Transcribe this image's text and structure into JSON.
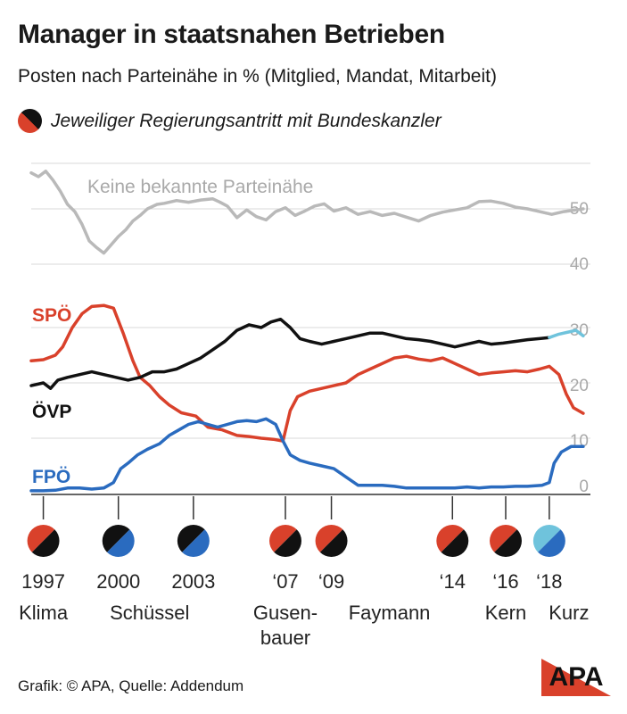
{
  "title": "Manager in staatsnahen Betrieben",
  "subtitle": "Posten nach Parteinähe in % (Mitglied, Mandat, Mitarbeit)",
  "legend_text": "Jeweiliger Regierungsantritt mit Bundeskanzler",
  "footer": "Grafik: © APA, Quelle: Addendum",
  "logo_text": "APA",
  "colors": {
    "spoe": "#d9412b",
    "oevp": "#111111",
    "fpoe": "#2a6bbf",
    "keine": "#b9b9b9",
    "kurz_oevp": "#6fc3dc",
    "grid": "#d9d9d9"
  },
  "chart_data": [
    {
      "type": "line",
      "panel": "upper",
      "yticks": [
        40,
        50
      ],
      "ylim": [
        39,
        57
      ],
      "x_range": [
        1996.5,
        2019.6
      ],
      "series": [
        {
          "name": "Keine bekannte Parteinähe",
          "color": "#b9b9b9",
          "points": [
            [
              1996.5,
              56.5
            ],
            [
              1996.8,
              55.8
            ],
            [
              1997.1,
              56.8
            ],
            [
              1997.4,
              55.2
            ],
            [
              1997.7,
              53.2
            ],
            [
              1998.0,
              50.8
            ],
            [
              1998.3,
              49.5
            ],
            [
              1998.6,
              47.2
            ],
            [
              1998.9,
              44.2
            ],
            [
              1999.2,
              43.0
            ],
            [
              1999.5,
              42.0
            ],
            [
              1999.8,
              43.5
            ],
            [
              2000.1,
              45.0
            ],
            [
              2000.4,
              46.2
            ],
            [
              2000.7,
              47.8
            ],
            [
              2001.0,
              48.8
            ],
            [
              2001.3,
              50.0
            ],
            [
              2001.7,
              50.8
            ],
            [
              2002.0,
              51.0
            ],
            [
              2002.5,
              51.5
            ],
            [
              2003.0,
              51.2
            ],
            [
              2003.5,
              51.6
            ],
            [
              2004.0,
              51.8
            ],
            [
              2004.3,
              51.2
            ],
            [
              2004.6,
              50.5
            ],
            [
              2005.0,
              48.4
            ],
            [
              2005.4,
              49.8
            ],
            [
              2005.8,
              48.6
            ],
            [
              2006.2,
              48.0
            ],
            [
              2006.6,
              49.5
            ],
            [
              2007.0,
              50.2
            ],
            [
              2007.4,
              48.8
            ],
            [
              2007.8,
              49.6
            ],
            [
              2008.2,
              50.5
            ],
            [
              2008.6,
              50.9
            ],
            [
              2009.0,
              49.6
            ],
            [
              2009.5,
              50.2
            ],
            [
              2010.0,
              49.0
            ],
            [
              2010.5,
              49.5
            ],
            [
              2011.0,
              48.8
            ],
            [
              2011.5,
              49.2
            ],
            [
              2012.0,
              48.5
            ],
            [
              2012.5,
              47.8
            ],
            [
              2013.0,
              48.8
            ],
            [
              2013.5,
              49.4
            ],
            [
              2014.0,
              49.8
            ],
            [
              2014.5,
              50.2
            ],
            [
              2015.0,
              51.3
            ],
            [
              2015.5,
              51.4
            ],
            [
              2016.0,
              51.0
            ],
            [
              2016.5,
              50.3
            ],
            [
              2017.0,
              50.0
            ],
            [
              2017.5,
              49.5
            ],
            [
              2018.0,
              49.0
            ],
            [
              2018.5,
              49.5
            ],
            [
              2019.0,
              49.8
            ],
            [
              2019.3,
              50.0
            ]
          ]
        }
      ]
    },
    {
      "type": "line",
      "panel": "lower",
      "yticks": [
        0,
        10,
        20,
        30
      ],
      "ylim": [
        0,
        34
      ],
      "x_range": [
        1996.5,
        2019.6
      ],
      "series": [
        {
          "name": "SPÖ",
          "color": "#d9412b",
          "points": [
            [
              1996.5,
              24.0
            ],
            [
              1997.0,
              24.2
            ],
            [
              1997.5,
              25.0
            ],
            [
              1997.8,
              26.5
            ],
            [
              1998.2,
              30.0
            ],
            [
              1998.6,
              32.5
            ],
            [
              1999.0,
              33.8
            ],
            [
              1999.5,
              34.0
            ],
            [
              1999.9,
              33.5
            ],
            [
              2000.3,
              29.0
            ],
            [
              2000.7,
              24.0
            ],
            [
              2001.0,
              21.0
            ],
            [
              2001.4,
              19.5
            ],
            [
              2001.8,
              17.5
            ],
            [
              2002.2,
              16.0
            ],
            [
              2002.7,
              14.6
            ],
            [
              2003.3,
              14.0
            ],
            [
              2003.8,
              12.0
            ],
            [
              2004.4,
              11.5
            ],
            [
              2005.0,
              10.5
            ],
            [
              2005.5,
              10.3
            ],
            [
              2006.0,
              10.0
            ],
            [
              2006.5,
              9.8
            ],
            [
              2006.9,
              9.5
            ],
            [
              2007.2,
              15.0
            ],
            [
              2007.5,
              17.5
            ],
            [
              2008.0,
              18.5
            ],
            [
              2008.5,
              19.0
            ],
            [
              2009.0,
              19.5
            ],
            [
              2009.5,
              20.0
            ],
            [
              2010.0,
              21.5
            ],
            [
              2010.5,
              22.5
            ],
            [
              2011.0,
              23.5
            ],
            [
              2011.5,
              24.5
            ],
            [
              2012.0,
              24.8
            ],
            [
              2012.5,
              24.3
            ],
            [
              2013.0,
              24.0
            ],
            [
              2013.5,
              24.5
            ],
            [
              2014.0,
              23.5
            ],
            [
              2014.5,
              22.5
            ],
            [
              2015.0,
              21.5
            ],
            [
              2015.5,
              21.8
            ],
            [
              2016.0,
              22.0
            ],
            [
              2016.5,
              22.2
            ],
            [
              2017.0,
              22.0
            ],
            [
              2017.5,
              22.5
            ],
            [
              2017.9,
              23.0
            ],
            [
              2018.3,
              21.5
            ],
            [
              2018.6,
              18.0
            ],
            [
              2018.9,
              15.5
            ],
            [
              2019.3,
              14.5
            ]
          ]
        },
        {
          "name": "ÖVP",
          "color": "#111111",
          "points": [
            [
              1996.5,
              19.5
            ],
            [
              1997.0,
              20.0
            ],
            [
              1997.3,
              19.0
            ],
            [
              1997.6,
              20.5
            ],
            [
              1998.0,
              21.0
            ],
            [
              1998.5,
              21.5
            ],
            [
              1999.0,
              22.0
            ],
            [
              1999.5,
              21.5
            ],
            [
              2000.0,
              21.0
            ],
            [
              2000.5,
              20.5
            ],
            [
              2001.0,
              21.0
            ],
            [
              2001.5,
              22.0
            ],
            [
              2002.0,
              22.0
            ],
            [
              2002.5,
              22.5
            ],
            [
              2003.0,
              23.5
            ],
            [
              2003.5,
              24.5
            ],
            [
              2004.0,
              26.0
            ],
            [
              2004.5,
              27.5
            ],
            [
              2005.0,
              29.5
            ],
            [
              2005.5,
              30.5
            ],
            [
              2006.0,
              30.0
            ],
            [
              2006.4,
              31.0
            ],
            [
              2006.8,
              31.5
            ],
            [
              2007.2,
              30.0
            ],
            [
              2007.6,
              28.0
            ],
            [
              2008.0,
              27.5
            ],
            [
              2008.5,
              27.0
            ],
            [
              2009.0,
              27.5
            ],
            [
              2009.5,
              28.0
            ],
            [
              2010.0,
              28.5
            ],
            [
              2010.5,
              29.0
            ],
            [
              2011.0,
              29.0
            ],
            [
              2011.5,
              28.5
            ],
            [
              2012.0,
              28.0
            ],
            [
              2012.5,
              27.8
            ],
            [
              2013.0,
              27.5
            ],
            [
              2013.5,
              27.0
            ],
            [
              2014.0,
              26.5
            ],
            [
              2014.5,
              27.0
            ],
            [
              2015.0,
              27.5
            ],
            [
              2015.5,
              27.0
            ],
            [
              2016.0,
              27.2
            ],
            [
              2016.5,
              27.5
            ],
            [
              2017.0,
              27.8
            ],
            [
              2017.5,
              28.0
            ],
            [
              2017.9,
              28.2
            ]
          ]
        },
        {
          "name": "ÖVP (Kurz)",
          "color": "#6fc3dc",
          "points": [
            [
              2017.9,
              28.2
            ],
            [
              2018.3,
              28.8
            ],
            [
              2018.7,
              29.2
            ],
            [
              2019.0,
              29.5
            ],
            [
              2019.3,
              28.5
            ]
          ]
        },
        {
          "name": "FPÖ",
          "color": "#2a6bbf",
          "points": [
            [
              1996.5,
              0.5
            ],
            [
              1997.0,
              0.5
            ],
            [
              1997.5,
              0.6
            ],
            [
              1998.0,
              1.0
            ],
            [
              1998.5,
              1.0
            ],
            [
              1999.0,
              0.8
            ],
            [
              1999.5,
              1.0
            ],
            [
              1999.9,
              2.0
            ],
            [
              2000.2,
              4.5
            ],
            [
              2000.5,
              5.5
            ],
            [
              2000.9,
              7.0
            ],
            [
              2001.3,
              8.0
            ],
            [
              2001.8,
              9.0
            ],
            [
              2002.2,
              10.5
            ],
            [
              2002.6,
              11.5
            ],
            [
              2003.0,
              12.5
            ],
            [
              2003.4,
              13.0
            ],
            [
              2003.8,
              12.5
            ],
            [
              2004.2,
              12.0
            ],
            [
              2004.6,
              12.5
            ],
            [
              2005.0,
              13.0
            ],
            [
              2005.4,
              13.2
            ],
            [
              2005.8,
              13.0
            ],
            [
              2006.2,
              13.5
            ],
            [
              2006.6,
              12.5
            ],
            [
              2006.9,
              9.5
            ],
            [
              2007.2,
              7.0
            ],
            [
              2007.6,
              6.0
            ],
            [
              2008.0,
              5.5
            ],
            [
              2008.5,
              5.0
            ],
            [
              2009.0,
              4.5
            ],
            [
              2009.5,
              3.0
            ],
            [
              2010.0,
              1.5
            ],
            [
              2010.5,
              1.5
            ],
            [
              2011.0,
              1.5
            ],
            [
              2011.5,
              1.3
            ],
            [
              2012.0,
              1.0
            ],
            [
              2012.5,
              1.0
            ],
            [
              2013.0,
              1.0
            ],
            [
              2013.5,
              1.0
            ],
            [
              2014.0,
              1.0
            ],
            [
              2014.5,
              1.2
            ],
            [
              2015.0,
              1.0
            ],
            [
              2015.5,
              1.2
            ],
            [
              2016.0,
              1.2
            ],
            [
              2016.5,
              1.3
            ],
            [
              2017.0,
              1.3
            ],
            [
              2017.6,
              1.5
            ],
            [
              2017.9,
              2.0
            ],
            [
              2018.1,
              5.5
            ],
            [
              2018.4,
              7.5
            ],
            [
              2018.8,
              8.5
            ],
            [
              2019.3,
              8.5
            ]
          ]
        }
      ]
    }
  ],
  "governments": [
    {
      "year": 1997.0,
      "year_label": "1997",
      "chancellor": "Klima",
      "chancellor_line2": "",
      "party_colors": [
        "#d9412b",
        "#111111"
      ]
    },
    {
      "year": 2000.1,
      "year_label": "2000",
      "chancellor": "Schüssel",
      "chancellor_line2": "",
      "party_colors": [
        "#111111",
        "#2a6bbf"
      ]
    },
    {
      "year": 2003.2,
      "year_label": "2003",
      "chancellor": "",
      "chancellor_line2": "",
      "party_colors": [
        "#111111",
        "#2a6bbf"
      ]
    },
    {
      "year": 2007.0,
      "year_label": "‘07",
      "chancellor": "Gusen-",
      "chancellor_line2": "bauer",
      "party_colors": [
        "#d9412b",
        "#111111"
      ]
    },
    {
      "year": 2008.9,
      "year_label": "‘09",
      "chancellor": "Faymann",
      "chancellor_line2": "",
      "party_colors": [
        "#d9412b",
        "#111111"
      ]
    },
    {
      "year": 2013.9,
      "year_label": "‘14",
      "chancellor": "",
      "chancellor_line2": "",
      "party_colors": [
        "#d9412b",
        "#111111"
      ]
    },
    {
      "year": 2016.1,
      "year_label": "‘16",
      "chancellor": "Kern",
      "chancellor_line2": "",
      "party_colors": [
        "#d9412b",
        "#111111"
      ]
    },
    {
      "year": 2017.9,
      "year_label": "‘18",
      "chancellor": "Kurz",
      "chancellor_line2": "",
      "party_colors": [
        "#6fc3dc",
        "#2a6bbf"
      ]
    }
  ]
}
